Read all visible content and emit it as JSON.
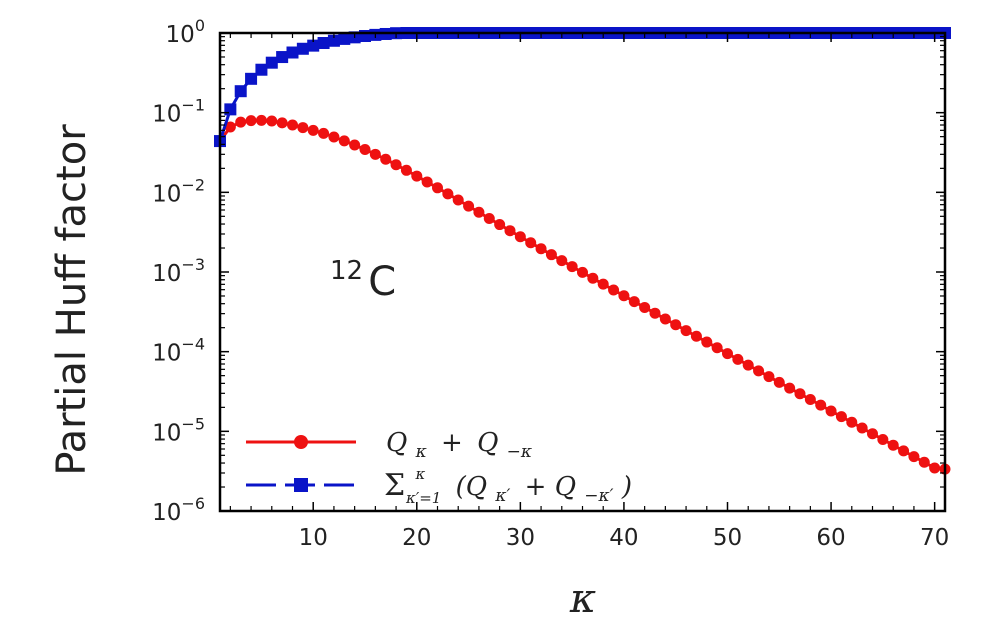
{
  "chart_data": {
    "type": "line",
    "title": "",
    "xlabel": "κ",
    "ylabel": "Partial Huff factor",
    "y_scale": "log",
    "xlim": [
      1,
      71
    ],
    "ylim": [
      1e-06,
      1
    ],
    "grid": false,
    "legend_position": "bottom-left",
    "x_ticks": [
      10,
      20,
      30,
      40,
      50,
      60,
      70
    ],
    "x_tick_labels": [
      "10",
      "20",
      "30",
      "40",
      "50",
      "60",
      "70"
    ],
    "y_ticks": [
      1e-06,
      1e-05,
      0.0001,
      0.001,
      0.01,
      0.1,
      1
    ],
    "y_tick_labels": [
      {
        "base": "10",
        "exp": "−6"
      },
      {
        "base": "10",
        "exp": "−5"
      },
      {
        "base": "10",
        "exp": "−4"
      },
      {
        "base": "10",
        "exp": "−3"
      },
      {
        "base": "10",
        "exp": "−2"
      },
      {
        "base": "10",
        "exp": "−1"
      },
      {
        "base": "10",
        "exp": "0"
      }
    ],
    "annotation": {
      "mass": "12",
      "element": "C"
    },
    "series": [
      {
        "name": "Q_κ + Q_−κ",
        "legend_main": "Q",
        "legend_sub1": "κ",
        "legend_op": "+",
        "legend_main2": "Q",
        "legend_sub2": "−κ",
        "color": "#ee1111",
        "marker": "circle",
        "x": [
          1,
          2,
          3,
          4,
          5,
          6,
          7,
          8,
          9,
          10,
          11,
          12,
          13,
          14,
          15,
          16,
          17,
          18,
          19,
          20,
          21,
          22,
          23,
          24,
          25,
          26,
          27,
          28,
          29,
          30,
          31,
          32,
          33,
          34,
          35,
          36,
          37,
          38,
          39,
          40,
          41,
          42,
          43,
          44,
          45,
          46,
          47,
          48,
          49,
          50,
          51,
          52,
          53,
          54,
          55,
          56,
          57,
          58,
          59,
          60,
          61,
          62,
          63,
          64,
          65,
          66,
          67,
          68,
          69,
          70,
          71
        ],
        "y": [
          0.044,
          0.066,
          0.076,
          0.0795,
          0.08,
          0.0785,
          0.0745,
          0.07,
          0.065,
          0.06,
          0.055,
          0.0495,
          0.0443,
          0.0393,
          0.0345,
          0.03,
          0.026,
          0.0222,
          0.0189,
          0.016,
          0.0135,
          0.0114,
          0.00957,
          0.00802,
          0.00671,
          0.00562,
          0.0047,
          0.00394,
          0.0033,
          0.00277,
          0.00233,
          0.00196,
          0.00165,
          0.00139,
          0.00117,
          0.000988,
          0.000834,
          0.000704,
          0.000595,
          0.000503,
          0.000425,
          0.000359,
          0.000304,
          0.000257,
          0.000218,
          0.000184,
          0.000156,
          0.000132,
          0.000112,
          9.46e-05,
          8.01e-05,
          6.78e-05,
          5.74e-05,
          4.86e-05,
          4.12e-05,
          3.49e-05,
          2.96e-05,
          2.51e-05,
          2.13e-05,
          1.8e-05,
          1.53e-05,
          1.3e-05,
          1.1e-05,
          9.32e-06,
          7.9e-06,
          6.7e-06,
          5.68e-06,
          4.82e-06,
          4.09e-06,
          3.47e-06,
          3.35e-06
        ]
      },
      {
        "name": "Σ_{κ'=1}^{κ} (Q_κ' + Q_−κ')",
        "legend_sigma": "Σ",
        "legend_sup": "κ",
        "legend_sub": "κ′=1",
        "legend_body": "(Q",
        "legend_sub1": "κ′",
        "legend_op": "+ Q",
        "legend_sub2": "−κ′",
        "legend_close": ")",
        "color": "#0a14c8",
        "marker": "square",
        "x": [
          1,
          2,
          3,
          4,
          5,
          6,
          7,
          8,
          9,
          10,
          11,
          12,
          13,
          14,
          15,
          16,
          17,
          18,
          19,
          20,
          21,
          22,
          23,
          24,
          25,
          26,
          27,
          28,
          29,
          30,
          31,
          32,
          33,
          34,
          35,
          36,
          37,
          38,
          39,
          40,
          41,
          42,
          43,
          44,
          45,
          46,
          47,
          48,
          49,
          50,
          51,
          52,
          53,
          54,
          55,
          56,
          57,
          58,
          59,
          60,
          61,
          62,
          63,
          64,
          65,
          66,
          67,
          68,
          69,
          70,
          71
        ],
        "y": [
          0.044,
          0.11,
          0.186,
          0.266,
          0.346,
          0.424,
          0.499,
          0.569,
          0.634,
          0.694,
          0.749,
          0.799,
          0.843,
          0.882,
          0.917,
          0.947,
          0.972,
          0.994,
          1.0,
          1.0,
          1.0,
          1.0,
          1.0,
          1.0,
          1.0,
          1.0,
          1.0,
          1.0,
          1.0,
          1.0,
          1.0,
          1.0,
          1.0,
          1.0,
          1.0,
          1.0,
          1.0,
          1.0,
          1.0,
          1.0,
          1.0,
          1.0,
          1.0,
          1.0,
          1.0,
          1.0,
          1.0,
          1.0,
          1.0,
          1.0,
          1.0,
          1.0,
          1.0,
          1.0,
          1.0,
          1.0,
          1.0,
          1.0,
          1.0,
          1.0,
          1.0,
          1.0,
          1.0,
          1.0,
          1.0,
          1.0,
          1.0,
          1.0,
          1.0,
          1.0,
          1.0
        ]
      }
    ]
  }
}
